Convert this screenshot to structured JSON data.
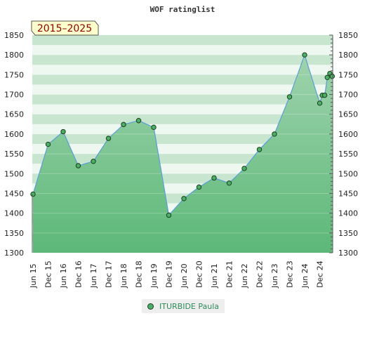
{
  "chart_data": {
    "type": "line",
    "title": "WOF ratinglist",
    "badge": "2015–2025",
    "x": [
      "Jun 15",
      "Dec 15",
      "Jun 16",
      "Dec 16",
      "Jun 17",
      "Dec 17",
      "Jun 18",
      "Dec 18",
      "Jun 19",
      "Dec 19",
      "Jun 20",
      "Dec 20",
      "Jun 21",
      "Dec 21",
      "Jun 22",
      "Dec 22",
      "Jun 23",
      "Dec 23",
      "Jun 24",
      "Dec 24"
    ],
    "ylim": [
      1300,
      1850
    ],
    "yticks": [
      1300,
      1350,
      1400,
      1450,
      1500,
      1550,
      1600,
      1650,
      1700,
      1750,
      1800,
      1850
    ],
    "series": [
      {
        "name": "ITURBIDE Paula",
        "points": [
          {
            "x": 0.0,
            "y": 1448
          },
          {
            "x": 1.0,
            "y": 1574
          },
          {
            "x": 2.0,
            "y": 1606
          },
          {
            "x": 3.0,
            "y": 1520
          },
          {
            "x": 4.0,
            "y": 1531
          },
          {
            "x": 5.0,
            "y": 1589
          },
          {
            "x": 6.0,
            "y": 1624
          },
          {
            "x": 7.0,
            "y": 1634
          },
          {
            "x": 8.0,
            "y": 1617
          },
          {
            "x": 9.0,
            "y": 1395
          },
          {
            "x": 10.0,
            "y": 1437
          },
          {
            "x": 11.0,
            "y": 1466
          },
          {
            "x": 12.0,
            "y": 1489
          },
          {
            "x": 13.0,
            "y": 1476
          },
          {
            "x": 14.0,
            "y": 1513
          },
          {
            "x": 15.0,
            "y": 1561
          },
          {
            "x": 16.0,
            "y": 1600
          },
          {
            "x": 17.0,
            "y": 1694
          },
          {
            "x": 18.0,
            "y": 1800
          },
          {
            "x": 19.0,
            "y": 1678
          },
          {
            "x": 19.17,
            "y": 1698
          },
          {
            "x": 19.33,
            "y": 1698
          },
          {
            "x": 19.5,
            "y": 1743
          },
          {
            "x": 19.67,
            "y": 1753
          },
          {
            "x": 19.83,
            "y": 1746
          }
        ]
      }
    ],
    "colors": {
      "line": "#5a9fd4",
      "marker_fill": "#4caf68",
      "marker_stroke": "#1a3d1a",
      "area_top": "#9fd3ad",
      "area_bottom": "#5cb878",
      "band_dark": "#b5dcc0",
      "band_light": "#eef7f0",
      "badge_fill": "#ffffcc"
    },
    "legend": {
      "position": "bottom-center"
    }
  }
}
